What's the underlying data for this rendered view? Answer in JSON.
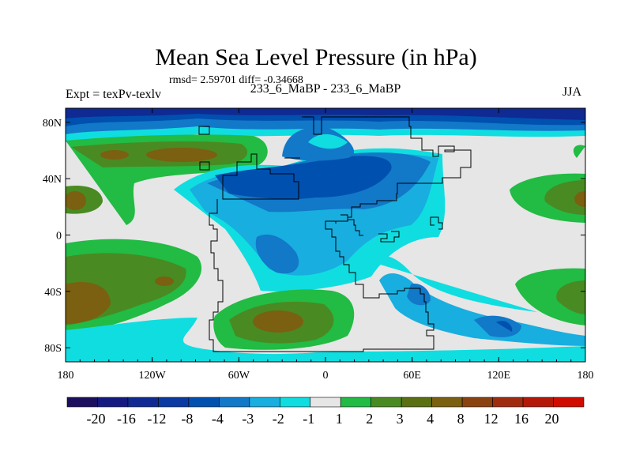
{
  "header": {
    "title": "Mean Sea Level Pressure (in hPa)",
    "stats": "rmsd= 2.59701 diff= -0.34668",
    "left_label": "Expt = texPv-texlv",
    "center_label": "233_6_MaBP - 233_6_MaBP",
    "right_label": "JJA"
  },
  "chart_data": {
    "type": "heatmap",
    "title": "Mean Sea Level Pressure (in hPa)",
    "variable": "mean sea level pressure difference",
    "units": "hPa",
    "x_ticks": [
      "180",
      "120W",
      "60W",
      "0",
      "60E",
      "120E",
      "180"
    ],
    "y_ticks": [
      "80N",
      "40N",
      "0",
      "40S",
      "80S"
    ],
    "colorbar_labels": [
      "-20",
      "-16",
      "-12",
      "-8",
      "-4",
      "-3",
      "-2",
      "-1",
      "1",
      "2",
      "3",
      "4",
      "8",
      "12",
      "16",
      "20"
    ],
    "colorbar_colors": [
      "#1c0f5e",
      "#141a80",
      "#0f2a92",
      "#0a3aa2",
      "#0050b0",
      "#1278c8",
      "#18aedf",
      "#10dde0",
      "#e6e6e6",
      "#22bb44",
      "#4a8a22",
      "#5a7012",
      "#7a6010",
      "#8a4210",
      "#a02c10",
      "#b41808",
      "#d00c00"
    ]
  }
}
